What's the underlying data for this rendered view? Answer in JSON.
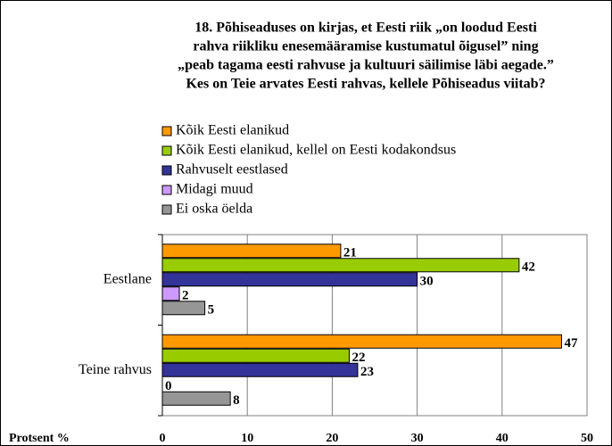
{
  "chart_data": {
    "type": "barh",
    "title": [
      "18. Põhiseaduses on kirjas, et Eesti riik „on loodud Eesti",
      "rahva riikliku enesemääramise kustumatul õigusel” ning",
      "„peab tagama eesti rahvuse ja kultuuri säilimise läbi aegade.”",
      "Kes on Teie arvates Eesti rahvas, kellele Põhiseadus viitab?"
    ],
    "x_label": "Protsent %",
    "categories": [
      "Eestlane",
      "Teine rahvus"
    ],
    "series": [
      {
        "name": "Kõik Eesti elanikud",
        "color": "#ff9900",
        "values": [
          21,
          47
        ]
      },
      {
        "name": "Kõik Eesti elanikud, kellel on Eesti kodakondsus",
        "color": "#99cc00",
        "values": [
          42,
          22
        ]
      },
      {
        "name": "Rahvuselt eestlased",
        "color": "#333399",
        "values": [
          30,
          23
        ]
      },
      {
        "name": "Midagi muud",
        "color": "#cc99ff",
        "values": [
          2,
          0
        ]
      },
      {
        "name": "Ei oska öelda",
        "color": "#969696",
        "values": [
          5,
          8
        ]
      }
    ],
    "xlim": [
      0,
      50
    ],
    "xticks": [
      0,
      10,
      20,
      30,
      40,
      50
    ],
    "grid": true
  }
}
